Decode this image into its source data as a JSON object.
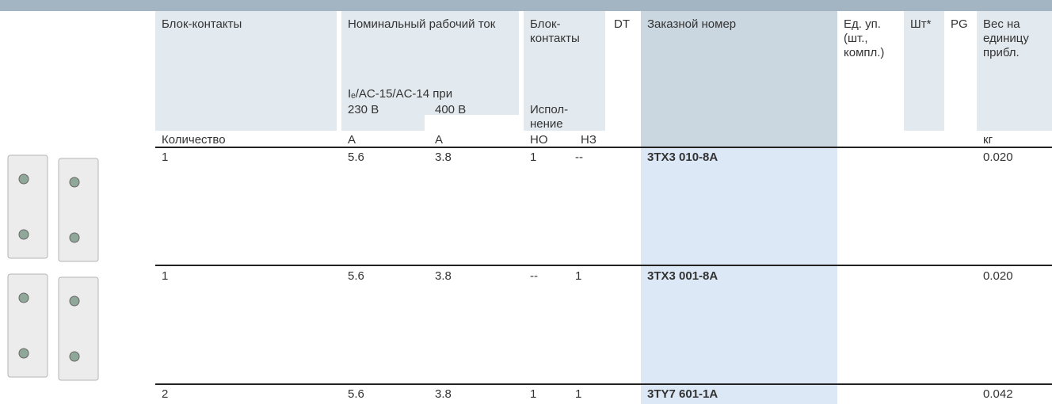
{
  "header": {
    "columns": [
      {
        "label": "Блок-контакты"
      },
      {
        "label": "Номинальный рабочий ток",
        "sub": "Iₑ/AC-15/AC-14 при",
        "parts": [
          "230 В",
          "400 В"
        ]
      },
      {
        "label": "Блок-контакты",
        "sub": "Испол-нение"
      },
      {
        "label": "DT"
      },
      {
        "label": "Заказной номер"
      },
      {
        "label": "Ед. уп. (шт., компл.)"
      },
      {
        "label": "Шт*"
      },
      {
        "label": "PG"
      },
      {
        "label": "Вес на единицу прибл."
      }
    ]
  },
  "units": [
    "Количество",
    "A",
    "A",
    "НО",
    "НЗ",
    "кг"
  ],
  "rows": [
    [
      "1",
      "5.6",
      "3.8",
      "1",
      "--",
      "3TX3 010-8A",
      "0.020"
    ],
    [
      "1",
      "5.6",
      "3.8",
      "--",
      "1",
      "3TX3 001-8A",
      "0.020"
    ],
    [
      "2",
      "5.6",
      "3.8",
      "1",
      "1",
      "3TY7 601-1A",
      "0.042"
    ]
  ]
}
